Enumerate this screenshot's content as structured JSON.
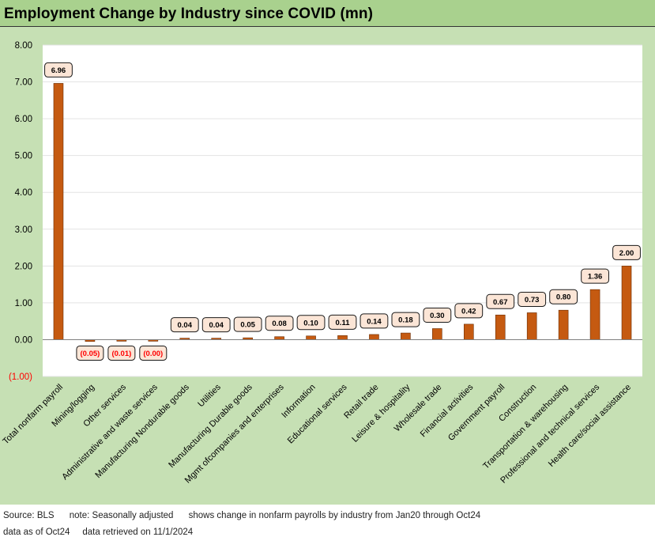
{
  "title": "Employment Change by Industry since COVID (mn)",
  "footer": {
    "source": "Source: BLS",
    "note": "note: Seasonally adjusted",
    "shows": "shows change in nonfarm payrolls by industry from Jan20 through Oct24",
    "data_as_of": "data as of Oct24",
    "retrieved": "data retrieved on 11/1/2024"
  },
  "colors": {
    "bar": "#c55a11",
    "bar_stroke": "#6b2e06",
    "plot_bg": "#ffffff",
    "frame_bg": "#c6e0b4",
    "title_bg": "#a9d18e",
    "negative_text": "#ff0000",
    "label_bg": "#fbe5d6"
  },
  "chart_data": {
    "type": "bar",
    "title": "Employment Change by Industry since COVID (mn)",
    "categories": [
      "Total nonfarm payroll",
      "Mining/logging",
      "Other services",
      "Administrative and waste services",
      "Manufacturing Nondurable goods",
      "Utilities",
      "Manufacturing Durable goods",
      "Mgmt ofcompanies and enterprises",
      "Information",
      "Educational services",
      "Retail trade",
      "Leisure & hospitality",
      "Wholesale trade",
      "Financial activities",
      "Government payroll",
      "Construction",
      "Transportation & warehousing",
      "Professional and technical services",
      "Health care/social assistance"
    ],
    "values": [
      6.96,
      -0.05,
      -0.01,
      -0.001,
      0.04,
      0.04,
      0.05,
      0.08,
      0.1,
      0.11,
      0.14,
      0.18,
      0.3,
      0.42,
      0.67,
      0.73,
      0.8,
      1.36,
      2.0
    ],
    "data_labels": [
      "6.96",
      "(0.05)",
      "(0.01)",
      "(0.00)",
      "0.04",
      "0.04",
      "0.05",
      "0.08",
      "0.10",
      "0.11",
      "0.14",
      "0.18",
      "0.30",
      "0.42",
      "0.67",
      "0.73",
      "0.80",
      "1.36",
      "2.00"
    ],
    "y_ticks": [
      {
        "value": 8,
        "label": "8.00"
      },
      {
        "value": 7,
        "label": "7.00"
      },
      {
        "value": 6,
        "label": "6.00"
      },
      {
        "value": 5,
        "label": "5.00"
      },
      {
        "value": 4,
        "label": "4.00"
      },
      {
        "value": 3,
        "label": "3.00"
      },
      {
        "value": 2,
        "label": "2.00"
      },
      {
        "value": 1,
        "label": "1.00"
      },
      {
        "value": 0,
        "label": "0.00"
      },
      {
        "value": -1,
        "label": "(1.00)"
      }
    ],
    "ylim": [
      -1,
      8
    ],
    "xlabel": "",
    "ylabel": "",
    "grid": true,
    "legend": "none"
  }
}
